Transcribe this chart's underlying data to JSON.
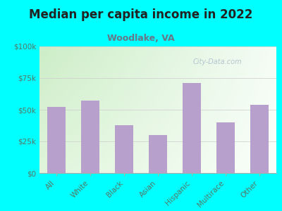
{
  "title": "Median per capita income in 2022",
  "subtitle": "Woodlake, VA",
  "categories": [
    "All",
    "White",
    "Black",
    "Asian",
    "Hispanic",
    "Multirace",
    "Other"
  ],
  "values": [
    52000,
    57000,
    38000,
    30000,
    71000,
    40000,
    54000
  ],
  "bar_color": "#b8a0cc",
  "background_outer": "#00FFFF",
  "background_inner_left": "#c8e8c0",
  "background_inner_right": "#f0f8f0",
  "yticks": [
    0,
    25000,
    50000,
    75000,
    100000
  ],
  "ytick_labels": [
    "$0",
    "$25k",
    "$50k",
    "$75k",
    "$100k"
  ],
  "title_fontsize": 12,
  "subtitle_fontsize": 9,
  "title_color": "#222222",
  "subtitle_color": "#667788",
  "tick_label_color": "#557766",
  "watermark": "City-Data.com",
  "watermark_color": "#aabbcc"
}
